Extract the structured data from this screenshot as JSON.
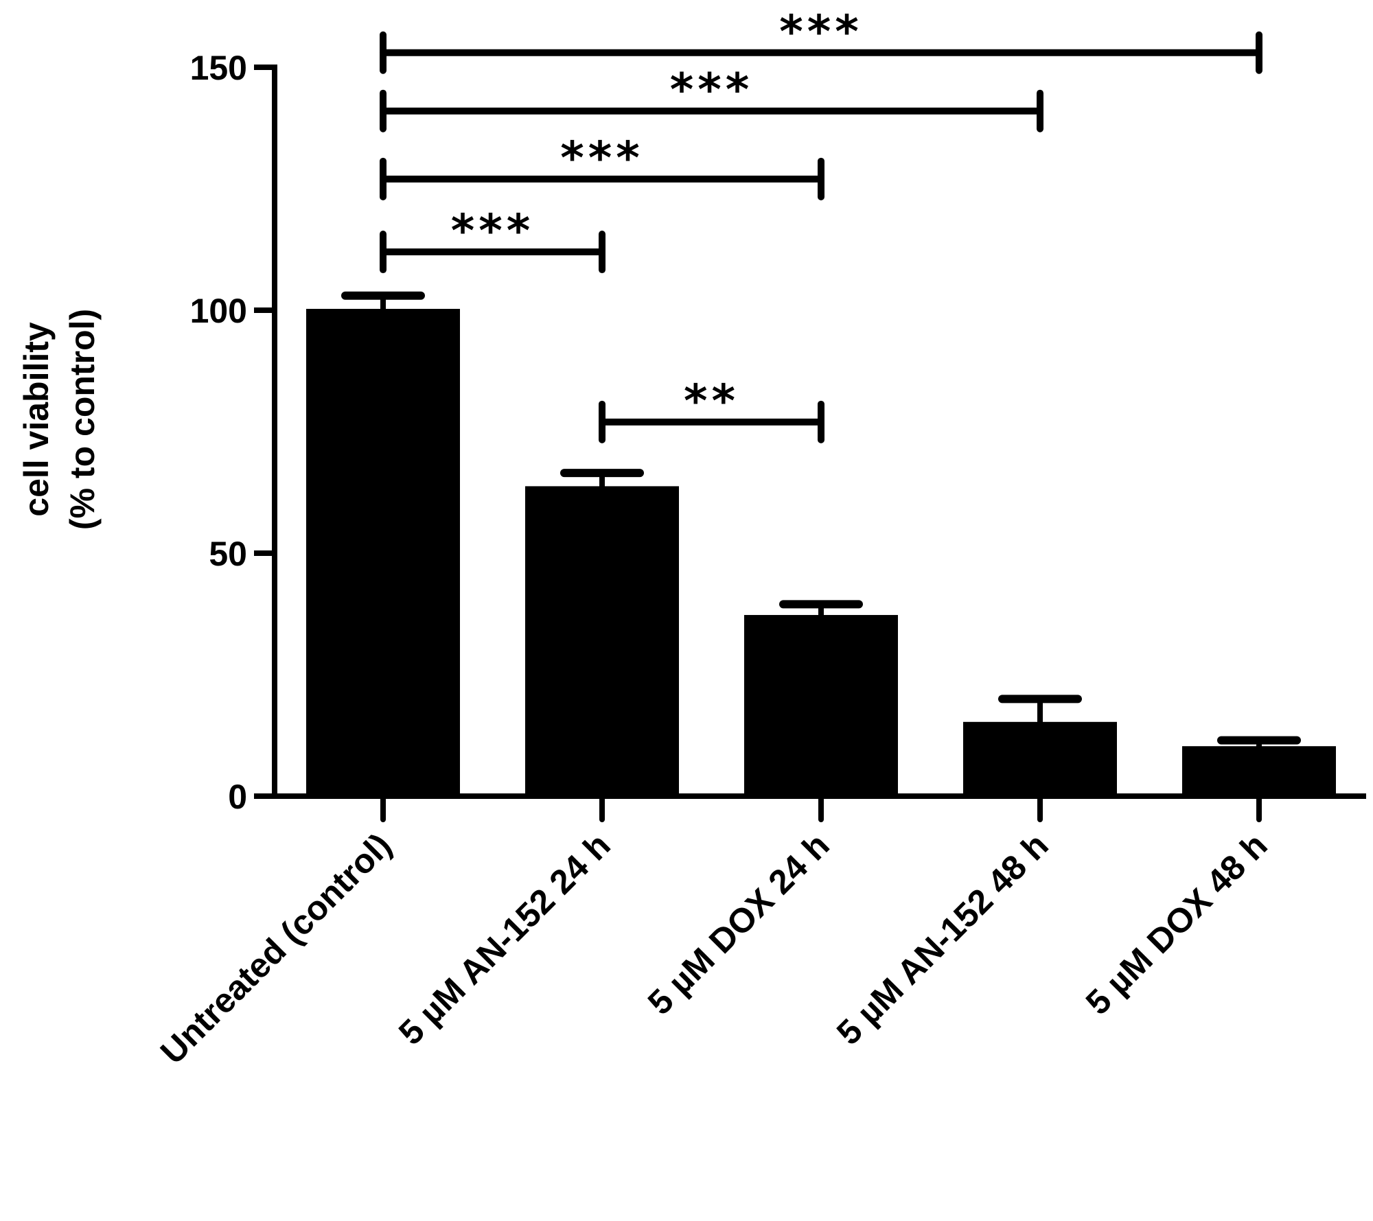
{
  "chart_data": {
    "type": "bar",
    "title": "",
    "ylabel": [
      "cell viability",
      "(% to control)"
    ],
    "xlabel": "",
    "ylim": [
      0,
      150
    ],
    "yticks": [
      0,
      50,
      100,
      150
    ],
    "categories": [
      "Untreated (control)",
      "5 µM AN-152 24 h",
      "5 µM DOX 24 h",
      "5 µM AN-152 48 h",
      "5 µM DOX 48 h"
    ],
    "values": [
      100,
      63.5,
      37,
      15,
      10
    ],
    "errors": [
      3,
      3,
      2.5,
      5,
      1.5
    ],
    "significance": [
      {
        "from": 0,
        "to": 4,
        "label": "***",
        "y": 153
      },
      {
        "from": 0,
        "to": 3,
        "label": "***",
        "y": 141
      },
      {
        "from": 0,
        "to": 2,
        "label": "***",
        "y": 127
      },
      {
        "from": 0,
        "to": 1,
        "label": "***",
        "y": 112
      },
      {
        "from": 1,
        "to": 2,
        "label": "**",
        "y": 77
      }
    ],
    "grid": false,
    "legend": "none",
    "bar_color": "#000000"
  }
}
